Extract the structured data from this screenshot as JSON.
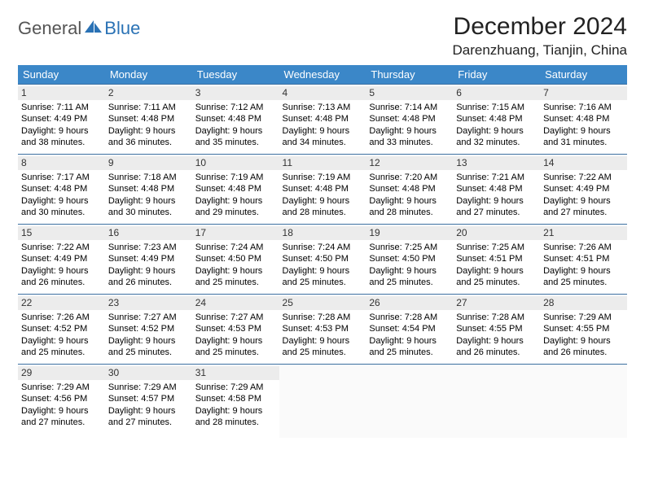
{
  "brand": {
    "part1": "General",
    "part2": "Blue"
  },
  "title": "December 2024",
  "location": "Darenzhuang, Tianjin, China",
  "colors": {
    "header_bg": "#3b87c8",
    "header_text": "#ffffff",
    "row_border": "#3b6fa0",
    "daynum_bg": "#ececec",
    "brand_gray": "#555555",
    "brand_blue": "#2a72b5"
  },
  "weekdays": [
    "Sunday",
    "Monday",
    "Tuesday",
    "Wednesday",
    "Thursday",
    "Friday",
    "Saturday"
  ],
  "weeks": [
    [
      {
        "n": "1",
        "sr": "Sunrise: 7:11 AM",
        "ss": "Sunset: 4:49 PM",
        "d1": "Daylight: 9 hours",
        "d2": "and 38 minutes."
      },
      {
        "n": "2",
        "sr": "Sunrise: 7:11 AM",
        "ss": "Sunset: 4:48 PM",
        "d1": "Daylight: 9 hours",
        "d2": "and 36 minutes."
      },
      {
        "n": "3",
        "sr": "Sunrise: 7:12 AM",
        "ss": "Sunset: 4:48 PM",
        "d1": "Daylight: 9 hours",
        "d2": "and 35 minutes."
      },
      {
        "n": "4",
        "sr": "Sunrise: 7:13 AM",
        "ss": "Sunset: 4:48 PM",
        "d1": "Daylight: 9 hours",
        "d2": "and 34 minutes."
      },
      {
        "n": "5",
        "sr": "Sunrise: 7:14 AM",
        "ss": "Sunset: 4:48 PM",
        "d1": "Daylight: 9 hours",
        "d2": "and 33 minutes."
      },
      {
        "n": "6",
        "sr": "Sunrise: 7:15 AM",
        "ss": "Sunset: 4:48 PM",
        "d1": "Daylight: 9 hours",
        "d2": "and 32 minutes."
      },
      {
        "n": "7",
        "sr": "Sunrise: 7:16 AM",
        "ss": "Sunset: 4:48 PM",
        "d1": "Daylight: 9 hours",
        "d2": "and 31 minutes."
      }
    ],
    [
      {
        "n": "8",
        "sr": "Sunrise: 7:17 AM",
        "ss": "Sunset: 4:48 PM",
        "d1": "Daylight: 9 hours",
        "d2": "and 30 minutes."
      },
      {
        "n": "9",
        "sr": "Sunrise: 7:18 AM",
        "ss": "Sunset: 4:48 PM",
        "d1": "Daylight: 9 hours",
        "d2": "and 30 minutes."
      },
      {
        "n": "10",
        "sr": "Sunrise: 7:19 AM",
        "ss": "Sunset: 4:48 PM",
        "d1": "Daylight: 9 hours",
        "d2": "and 29 minutes."
      },
      {
        "n": "11",
        "sr": "Sunrise: 7:19 AM",
        "ss": "Sunset: 4:48 PM",
        "d1": "Daylight: 9 hours",
        "d2": "and 28 minutes."
      },
      {
        "n": "12",
        "sr": "Sunrise: 7:20 AM",
        "ss": "Sunset: 4:48 PM",
        "d1": "Daylight: 9 hours",
        "d2": "and 28 minutes."
      },
      {
        "n": "13",
        "sr": "Sunrise: 7:21 AM",
        "ss": "Sunset: 4:48 PM",
        "d1": "Daylight: 9 hours",
        "d2": "and 27 minutes."
      },
      {
        "n": "14",
        "sr": "Sunrise: 7:22 AM",
        "ss": "Sunset: 4:49 PM",
        "d1": "Daylight: 9 hours",
        "d2": "and 27 minutes."
      }
    ],
    [
      {
        "n": "15",
        "sr": "Sunrise: 7:22 AM",
        "ss": "Sunset: 4:49 PM",
        "d1": "Daylight: 9 hours",
        "d2": "and 26 minutes."
      },
      {
        "n": "16",
        "sr": "Sunrise: 7:23 AM",
        "ss": "Sunset: 4:49 PM",
        "d1": "Daylight: 9 hours",
        "d2": "and 26 minutes."
      },
      {
        "n": "17",
        "sr": "Sunrise: 7:24 AM",
        "ss": "Sunset: 4:50 PM",
        "d1": "Daylight: 9 hours",
        "d2": "and 25 minutes."
      },
      {
        "n": "18",
        "sr": "Sunrise: 7:24 AM",
        "ss": "Sunset: 4:50 PM",
        "d1": "Daylight: 9 hours",
        "d2": "and 25 minutes."
      },
      {
        "n": "19",
        "sr": "Sunrise: 7:25 AM",
        "ss": "Sunset: 4:50 PM",
        "d1": "Daylight: 9 hours",
        "d2": "and 25 minutes."
      },
      {
        "n": "20",
        "sr": "Sunrise: 7:25 AM",
        "ss": "Sunset: 4:51 PM",
        "d1": "Daylight: 9 hours",
        "d2": "and 25 minutes."
      },
      {
        "n": "21",
        "sr": "Sunrise: 7:26 AM",
        "ss": "Sunset: 4:51 PM",
        "d1": "Daylight: 9 hours",
        "d2": "and 25 minutes."
      }
    ],
    [
      {
        "n": "22",
        "sr": "Sunrise: 7:26 AM",
        "ss": "Sunset: 4:52 PM",
        "d1": "Daylight: 9 hours",
        "d2": "and 25 minutes."
      },
      {
        "n": "23",
        "sr": "Sunrise: 7:27 AM",
        "ss": "Sunset: 4:52 PM",
        "d1": "Daylight: 9 hours",
        "d2": "and 25 minutes."
      },
      {
        "n": "24",
        "sr": "Sunrise: 7:27 AM",
        "ss": "Sunset: 4:53 PM",
        "d1": "Daylight: 9 hours",
        "d2": "and 25 minutes."
      },
      {
        "n": "25",
        "sr": "Sunrise: 7:28 AM",
        "ss": "Sunset: 4:53 PM",
        "d1": "Daylight: 9 hours",
        "d2": "and 25 minutes."
      },
      {
        "n": "26",
        "sr": "Sunrise: 7:28 AM",
        "ss": "Sunset: 4:54 PM",
        "d1": "Daylight: 9 hours",
        "d2": "and 25 minutes."
      },
      {
        "n": "27",
        "sr": "Sunrise: 7:28 AM",
        "ss": "Sunset: 4:55 PM",
        "d1": "Daylight: 9 hours",
        "d2": "and 26 minutes."
      },
      {
        "n": "28",
        "sr": "Sunrise: 7:29 AM",
        "ss": "Sunset: 4:55 PM",
        "d1": "Daylight: 9 hours",
        "d2": "and 26 minutes."
      }
    ],
    [
      {
        "n": "29",
        "sr": "Sunrise: 7:29 AM",
        "ss": "Sunset: 4:56 PM",
        "d1": "Daylight: 9 hours",
        "d2": "and 27 minutes."
      },
      {
        "n": "30",
        "sr": "Sunrise: 7:29 AM",
        "ss": "Sunset: 4:57 PM",
        "d1": "Daylight: 9 hours",
        "d2": "and 27 minutes."
      },
      {
        "n": "31",
        "sr": "Sunrise: 7:29 AM",
        "ss": "Sunset: 4:58 PM",
        "d1": "Daylight: 9 hours",
        "d2": "and 28 minutes."
      },
      null,
      null,
      null,
      null
    ]
  ]
}
